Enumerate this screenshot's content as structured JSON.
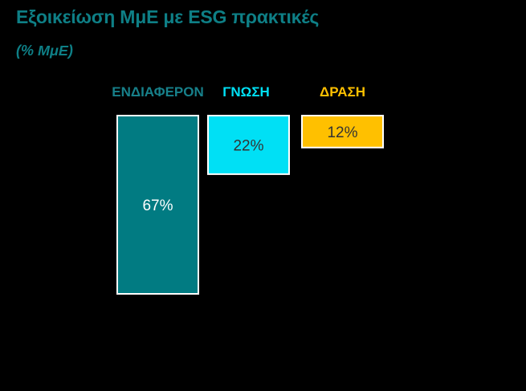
{
  "title": "Εξοικείωση ΜμΕ με ESG πρακτικές",
  "subtitle": "(% ΜμΕ)",
  "chart_data": {
    "type": "bar",
    "title": "Εξοικείωση ΜμΕ με ESG πρακτικές",
    "subtitle": "(% ΜμΕ)",
    "categories": [
      "ΕΝΔΙΑΦΕΡΟΝ",
      "ΓΝΩΣΗ",
      "ΔΡΑΣΗ"
    ],
    "values": [
      67,
      22,
      12
    ],
    "value_labels": [
      "67%",
      "22%",
      "12%"
    ],
    "colors": [
      "#017b82",
      "#00e0f5",
      "#ffc000"
    ],
    "label_colors": [
      "#17808a",
      "#00e0f5",
      "#ffc000"
    ],
    "value_text_colors": [
      "#ffffff",
      "#333333",
      "#333333"
    ],
    "ylim": [
      0,
      67
    ],
    "bar_orientation": "top-hanging"
  }
}
